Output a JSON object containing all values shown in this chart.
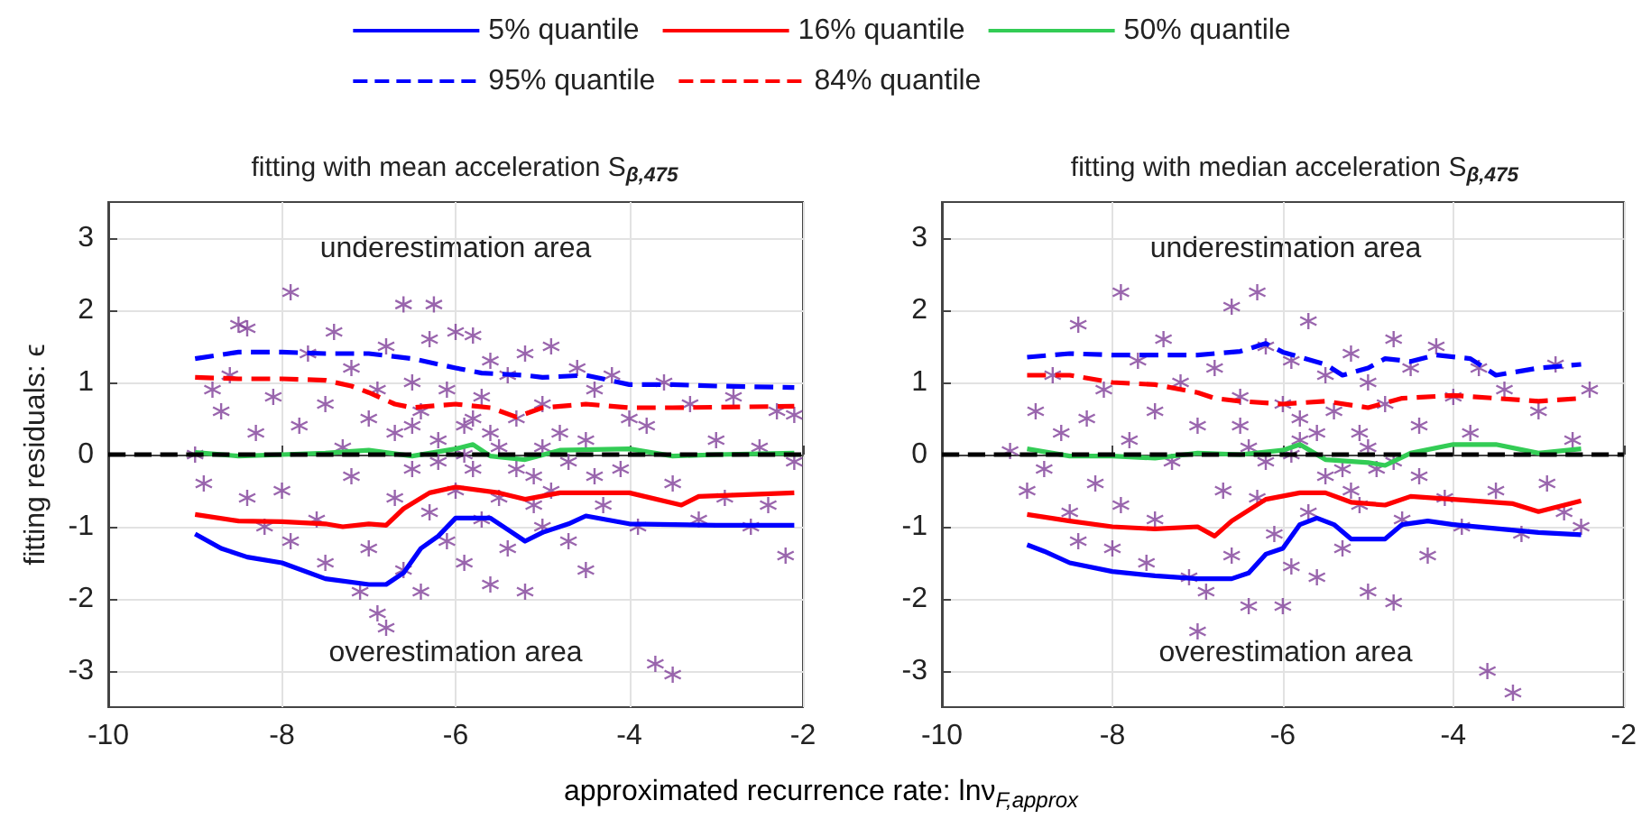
{
  "chart_data": [
    {
      "type": "scatter",
      "title": "fitting with mean acceleration S$_{β,475}$",
      "xlabel": "approximated recurrence rate: lnν$_{F,approx}$",
      "ylabel": "fitting residuals: ϵ",
      "annotations": [
        "underestimation area",
        "overestimation area"
      ],
      "xlim": [
        -10,
        -2
      ],
      "xticks": [
        -10,
        -8,
        -6,
        -4,
        -2
      ],
      "ylim": [
        -3.5,
        3.5
      ],
      "yticks": [
        -3,
        -2,
        -1,
        0,
        1,
        2,
        3
      ],
      "grid": true,
      "legend": "top",
      "ref_lines": [
        {
          "axis": "y",
          "value": 0,
          "color": "#000000",
          "line_style": "dashed"
        }
      ],
      "series": [
        {
          "color": "#7f3f98",
          "marker": "cross",
          "x": [
            -9.0,
            -8.9,
            -8.8,
            -8.7,
            -8.6,
            -8.5,
            -8.4,
            -8.4,
            -8.3,
            -8.2,
            -8.1,
            -8.0,
            -7.9,
            -7.9,
            -7.8,
            -7.7,
            -7.6,
            -7.5,
            -7.5,
            -7.4,
            -7.3,
            -7.2,
            -7.2,
            -7.1,
            -7.0,
            -7.0,
            -6.9,
            -6.9,
            -6.8,
            -6.8,
            -6.7,
            -6.7,
            -6.6,
            -6.6,
            -6.5,
            -6.5,
            -6.4,
            -6.4,
            -6.3,
            -6.3,
            -6.25,
            -6.2,
            -6.1,
            -6.1,
            -6.0,
            -6.0,
            -5.9,
            -5.9,
            -5.8,
            -5.8,
            -5.7,
            -5.7,
            -5.6,
            -5.6,
            -5.5,
            -5.5,
            -5.4,
            -5.4,
            -5.3,
            -5.2,
            -5.2,
            -5.1,
            -5.0,
            -5.0,
            -4.9,
            -4.9,
            -4.8,
            -4.7,
            -4.6,
            -4.5,
            -4.5,
            -4.4,
            -4.3,
            -4.2,
            -4.1,
            -4.0,
            -3.9,
            -3.8,
            -3.7,
            -3.6,
            -3.5,
            -3.5,
            -3.3,
            -3.2,
            -3.0,
            -2.9,
            -2.8,
            -2.6,
            -2.5,
            -2.4,
            -2.3,
            -2.2,
            -2.1,
            -2.1,
            -6.2,
            -5.9,
            -5.6,
            -5.3,
            -5.0,
            -4.7,
            -6.5,
            -5.8,
            -5.1,
            -4.4
          ],
          "values": [
            0.0,
            -0.4,
            0.9,
            0.6,
            1.1,
            1.8,
            1.75,
            -0.6,
            0.3,
            -1.0,
            0.8,
            -0.5,
            2.25,
            -1.2,
            0.4,
            1.4,
            -0.9,
            0.7,
            -1.5,
            1.7,
            0.1,
            -0.3,
            1.2,
            -1.9,
            0.5,
            -1.3,
            -2.2,
            0.9,
            -2.4,
            1.5,
            -0.6,
            0.3,
            2.08,
            -1.6,
            1.0,
            -0.2,
            0.6,
            -1.9,
            1.6,
            -0.8,
            2.08,
            0.2,
            -1.2,
            0.9,
            1.7,
            -0.5,
            0.4,
            -1.5,
            1.65,
            -0.2,
            -0.9,
            0.8,
            1.3,
            -1.8,
            0.1,
            -0.6,
            1.1,
            -1.3,
            0.5,
            -1.9,
            1.4,
            -0.3,
            0.7,
            -1.0,
            1.5,
            -0.5,
            0.3,
            -1.2,
            1.2,
            -1.6,
            0.2,
            0.9,
            -0.7,
            1.1,
            -0.2,
            0.5,
            -1.0,
            0.4,
            -2.9,
            1.0,
            -3.05,
            -0.4,
            0.7,
            -0.9,
            0.2,
            -0.6,
            0.8,
            -1.0,
            0.1,
            -0.7,
            0.6,
            -1.4,
            0.55,
            -0.1,
            -0.1,
            0.0,
            0.3,
            -0.2,
            0.1,
            -0.1,
            0.4,
            0.5,
            -0.7,
            -0.3
          ]
        },
        {
          "type": "line",
          "name": "5% quantile",
          "color": "#0000ff",
          "line_style": "solid",
          "marker": "none",
          "x": [
            -9,
            -8.7,
            -8.4,
            -8,
            -7.5,
            -7,
            -6.8,
            -6.6,
            -6.4,
            -6.2,
            -6,
            -5.6,
            -5.4,
            -5.2,
            -5,
            -4.7,
            -4.5,
            -4,
            -3,
            -2.1
          ],
          "values": [
            -1.1,
            -1.3,
            -1.42,
            -1.5,
            -1.72,
            -1.8,
            -1.8,
            -1.64,
            -1.3,
            -1.13,
            -0.88,
            -0.88,
            -1.04,
            -1.2,
            -1.08,
            -0.96,
            -0.85,
            -0.96,
            -0.98,
            -0.98
          ]
        },
        {
          "type": "line",
          "name": "16% quantile",
          "color": "#ff0000",
          "line_style": "solid",
          "marker": "none",
          "x": [
            -9,
            -8.5,
            -8,
            -7.5,
            -7.3,
            -7,
            -6.8,
            -6.6,
            -6.3,
            -6,
            -5.5,
            -5.2,
            -4.8,
            -4,
            -3.4,
            -3.2,
            -2.1
          ],
          "values": [
            -0.83,
            -0.92,
            -0.93,
            -0.96,
            -1.0,
            -0.96,
            -0.98,
            -0.75,
            -0.53,
            -0.45,
            -0.53,
            -0.62,
            -0.53,
            -0.53,
            -0.7,
            -0.58,
            -0.53
          ]
        },
        {
          "type": "line",
          "name": "50% quantile",
          "color": "#33cc55",
          "line_style": "solid",
          "marker": "none",
          "x": [
            -9,
            -8.5,
            -8,
            -7.5,
            -7,
            -6.5,
            -6,
            -5.8,
            -5.6,
            -5.2,
            -4.8,
            -4,
            -3.5,
            -3,
            -2.1
          ],
          "values": [
            0.03,
            -0.02,
            0,
            0.02,
            0.06,
            -0.02,
            0.08,
            0.14,
            -0.02,
            -0.07,
            0.06,
            0.08,
            -0.02,
            0,
            0.02
          ]
        },
        {
          "type": "line",
          "name": "95% quantile",
          "color": "#0000ff",
          "line_style": "dashed",
          "marker": "none",
          "x": [
            -9,
            -8.5,
            -8,
            -7.5,
            -7,
            -6.5,
            -6,
            -5.7,
            -5.2,
            -5,
            -4.5,
            -4,
            -3.5,
            -3,
            -2.1
          ],
          "values": [
            1.33,
            1.42,
            1.42,
            1.4,
            1.4,
            1.33,
            1.2,
            1.13,
            1.1,
            1.07,
            1.1,
            0.97,
            0.97,
            0.95,
            0.93
          ]
        },
        {
          "type": "line",
          "name": "84% quantile",
          "color": "#ff0000",
          "line_style": "dashed",
          "marker": "none",
          "x": [
            -9,
            -8.5,
            -8,
            -7.5,
            -7.2,
            -7,
            -6.7,
            -6.5,
            -6,
            -5.6,
            -5.3,
            -5,
            -4.5,
            -4,
            -3.5,
            -2.1
          ],
          "values": [
            1.07,
            1.05,
            1.05,
            1.03,
            0.95,
            0.86,
            0.7,
            0.65,
            0.7,
            0.65,
            0.52,
            0.65,
            0.7,
            0.65,
            0.65,
            0.67
          ]
        }
      ]
    },
    {
      "type": "scatter",
      "title": "fitting with median acceleration S$_{β,475}$",
      "annotations": [
        "underestimation area",
        "overestimation area"
      ],
      "xlim": [
        -10,
        -2
      ],
      "xticks": [
        -10,
        -8,
        -6,
        -4,
        -2
      ],
      "ylim": [
        -3.5,
        3.5
      ],
      "yticks": [
        -3,
        -2,
        -1,
        0,
        1,
        2,
        3
      ],
      "grid": true,
      "ref_lines": [
        {
          "axis": "y",
          "value": 0,
          "color": "#000000",
          "line_style": "dashed"
        }
      ],
      "series": [
        {
          "color": "#7f3f98",
          "marker": "cross",
          "x": [
            -9.2,
            -9.0,
            -8.9,
            -8.8,
            -8.7,
            -8.6,
            -8.5,
            -8.4,
            -8.4,
            -8.3,
            -8.2,
            -8.1,
            -8.0,
            -7.9,
            -7.9,
            -7.8,
            -7.7,
            -7.6,
            -7.5,
            -7.5,
            -7.4,
            -7.3,
            -7.2,
            -7.1,
            -7.0,
            -7.0,
            -6.9,
            -6.8,
            -6.7,
            -6.6,
            -6.6,
            -6.5,
            -6.4,
            -6.4,
            -6.3,
            -6.3,
            -6.2,
            -6.1,
            -6.0,
            -6.0,
            -5.9,
            -5.9,
            -5.8,
            -5.7,
            -5.7,
            -5.6,
            -5.5,
            -5.5,
            -5.4,
            -5.3,
            -5.2,
            -5.2,
            -5.1,
            -5.0,
            -5.0,
            -4.9,
            -4.8,
            -4.7,
            -4.7,
            -4.6,
            -4.5,
            -4.4,
            -4.3,
            -4.2,
            -4.1,
            -4.0,
            -3.9,
            -3.8,
            -3.7,
            -3.6,
            -3.5,
            -3.4,
            -3.3,
            -3.2,
            -3.0,
            -2.9,
            -2.8,
            -2.7,
            -2.6,
            -2.5,
            -2.4,
            -6.2,
            -5.9,
            -5.6,
            -5.3,
            -5.0,
            -4.7,
            -6.5,
            -5.8,
            -5.1,
            -4.4
          ],
          "values": [
            0.05,
            -0.5,
            0.6,
            -0.2,
            1.1,
            0.3,
            -0.8,
            1.8,
            -1.2,
            0.5,
            -0.4,
            0.9,
            -1.3,
            2.25,
            -0.7,
            0.2,
            1.3,
            -1.5,
            0.6,
            -0.9,
            1.6,
            -0.1,
            1.0,
            -1.7,
            0.4,
            -2.45,
            -1.9,
            1.2,
            -0.5,
            2.05,
            -1.4,
            0.8,
            -2.1,
            0.1,
            2.25,
            -0.6,
            1.5,
            -1.1,
            -2.1,
            0.7,
            -1.55,
            1.3,
            0.2,
            1.85,
            -0.8,
            -1.7,
            1.1,
            -0.3,
            0.6,
            -1.3,
            1.4,
            -0.5,
            0.3,
            -1.9,
            1.0,
            -0.2,
            0.7,
            -2.05,
            1.6,
            -0.9,
            1.2,
            0.4,
            -1.4,
            1.5,
            -0.6,
            0.8,
            -1.0,
            0.3,
            1.2,
            -3.0,
            -0.5,
            0.9,
            -3.3,
            -1.1,
            0.6,
            -0.4,
            1.25,
            -0.8,
            0.2,
            -1.0,
            0.9,
            -0.1,
            0.0,
            0.3,
            -0.2,
            0.1,
            -0.1,
            0.4,
            0.5,
            -0.7,
            -0.3
          ]
        },
        {
          "type": "line",
          "color": "#0000ff",
          "line_style": "solid",
          "marker": "none",
          "x": [
            -9,
            -8.8,
            -8.5,
            -8,
            -7.5,
            -7,
            -6.6,
            -6.4,
            -6.2,
            -6,
            -5.8,
            -5.6,
            -5.4,
            -5.2,
            -4.8,
            -4.6,
            -4.3,
            -4,
            -3,
            -2.5
          ],
          "values": [
            -1.25,
            -1.34,
            -1.5,
            -1.62,
            -1.68,
            -1.72,
            -1.72,
            -1.64,
            -1.38,
            -1.3,
            -0.97,
            -0.88,
            -0.97,
            -1.17,
            -1.17,
            -0.97,
            -0.92,
            -0.97,
            -1.08,
            -1.11
          ]
        },
        {
          "type": "line",
          "color": "#ff0000",
          "line_style": "solid",
          "marker": "none",
          "x": [
            -9,
            -8.5,
            -8,
            -7.5,
            -7,
            -6.8,
            -6.6,
            -6.2,
            -5.8,
            -5.5,
            -5.2,
            -4.8,
            -4.5,
            -4,
            -3.3,
            -3,
            -2.5
          ],
          "values": [
            -0.83,
            -0.92,
            -1.0,
            -1.03,
            -1.0,
            -1.13,
            -0.92,
            -0.62,
            -0.53,
            -0.53,
            -0.66,
            -0.7,
            -0.58,
            -0.62,
            -0.68,
            -0.79,
            -0.64
          ]
        },
        {
          "type": "line",
          "color": "#33cc55",
          "line_style": "solid",
          "marker": "none",
          "x": [
            -9,
            -8.5,
            -8,
            -7.5,
            -7,
            -6.5,
            -6,
            -5.8,
            -5.5,
            -5,
            -4.8,
            -4.5,
            -4,
            -3.5,
            -3,
            -2.5
          ],
          "values": [
            0.08,
            -0.02,
            -0.02,
            -0.05,
            0.02,
            0,
            0.06,
            0.14,
            -0.07,
            -0.11,
            -0.15,
            0.02,
            0.14,
            0.14,
            0.02,
            0.08
          ]
        },
        {
          "type": "line",
          "color": "#0000ff",
          "line_style": "dashed",
          "marker": "none",
          "x": [
            -9,
            -8.5,
            -8,
            -7.5,
            -7,
            -6.5,
            -6.2,
            -6,
            -5.5,
            -5.3,
            -5,
            -4.8,
            -4.5,
            -4.2,
            -3.8,
            -3.5,
            -3,
            -2.5
          ],
          "values": [
            1.35,
            1.4,
            1.38,
            1.38,
            1.38,
            1.43,
            1.54,
            1.42,
            1.25,
            1.1,
            1.2,
            1.33,
            1.29,
            1.38,
            1.33,
            1.1,
            1.2,
            1.25
          ]
        },
        {
          "type": "line",
          "color": "#ff0000",
          "line_style": "dashed",
          "marker": "none",
          "x": [
            -9,
            -8.5,
            -8,
            -7.5,
            -7,
            -6.8,
            -6.5,
            -6,
            -5.5,
            -5,
            -4.6,
            -4,
            -3.5,
            -3,
            -2.5
          ],
          "values": [
            1.1,
            1.1,
            1.0,
            0.97,
            0.86,
            0.78,
            0.74,
            0.7,
            0.74,
            0.65,
            0.78,
            0.82,
            0.78,
            0.74,
            0.78
          ]
        }
      ]
    }
  ]
}
